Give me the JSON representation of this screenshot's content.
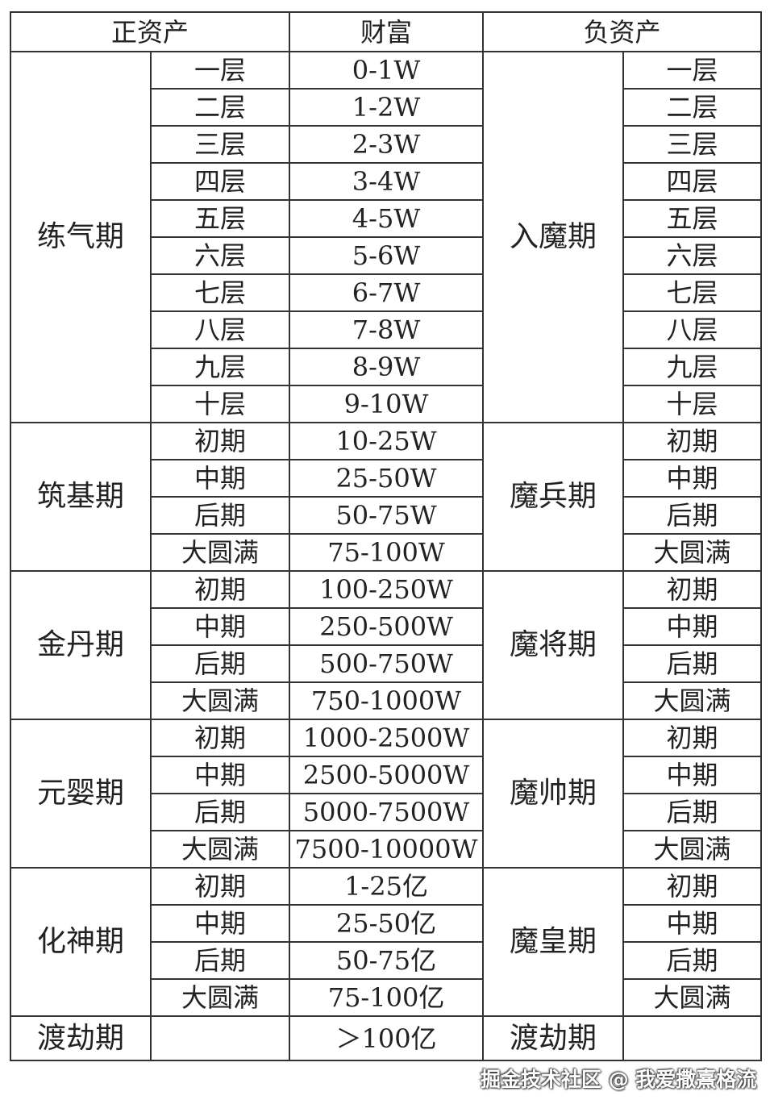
{
  "header": {
    "positive": "正资产",
    "wealth": "财富",
    "negative": "负资产"
  },
  "groups": [
    {
      "positive": "练气期",
      "negative": "入魔期",
      "rows": [
        {
          "stage": "一层",
          "wealth": "0-1W",
          "neg_stage": "一层"
        },
        {
          "stage": "二层",
          "wealth": "1-2W",
          "neg_stage": "二层"
        },
        {
          "stage": "三层",
          "wealth": "2-3W",
          "neg_stage": "三层"
        },
        {
          "stage": "四层",
          "wealth": "3-4W",
          "neg_stage": "四层"
        },
        {
          "stage": "五层",
          "wealth": "4-5W",
          "neg_stage": "五层"
        },
        {
          "stage": "六层",
          "wealth": "5-6W",
          "neg_stage": "六层"
        },
        {
          "stage": "七层",
          "wealth": "6-7W",
          "neg_stage": "七层"
        },
        {
          "stage": "八层",
          "wealth": "7-8W",
          "neg_stage": "八层"
        },
        {
          "stage": "九层",
          "wealth": "8-9W",
          "neg_stage": "九层"
        },
        {
          "stage": "十层",
          "wealth": "9-10W",
          "neg_stage": "十层"
        }
      ]
    },
    {
      "positive": "筑基期",
      "negative": "魔兵期",
      "rows": [
        {
          "stage": "初期",
          "wealth": "10-25W",
          "neg_stage": "初期"
        },
        {
          "stage": "中期",
          "wealth": "25-50W",
          "neg_stage": "中期"
        },
        {
          "stage": "后期",
          "wealth": "50-75W",
          "neg_stage": "后期"
        },
        {
          "stage": "大圆满",
          "wealth": "75-100W",
          "neg_stage": "大圆满"
        }
      ]
    },
    {
      "positive": "金丹期",
      "negative": "魔将期",
      "rows": [
        {
          "stage": "初期",
          "wealth": "100-250W",
          "neg_stage": "初期"
        },
        {
          "stage": "中期",
          "wealth": "250-500W",
          "neg_stage": "中期"
        },
        {
          "stage": "后期",
          "wealth": "500-750W",
          "neg_stage": "后期"
        },
        {
          "stage": "大圆满",
          "wealth": "750-1000W",
          "neg_stage": "大圆满"
        }
      ]
    },
    {
      "positive": "元婴期",
      "negative": "魔帅期",
      "rows": [
        {
          "stage": "初期",
          "wealth": "1000-2500W",
          "neg_stage": "初期"
        },
        {
          "stage": "中期",
          "wealth": "2500-5000W",
          "neg_stage": "中期"
        },
        {
          "stage": "后期",
          "wealth": "5000-7500W",
          "neg_stage": "后期"
        },
        {
          "stage": "大圆满",
          "wealth": "7500-10000W",
          "neg_stage": "大圆满"
        }
      ]
    },
    {
      "positive": "化神期",
      "negative": "魔皇期",
      "rows": [
        {
          "stage": "初期",
          "wealth": "1-25亿",
          "neg_stage": "初期"
        },
        {
          "stage": "中期",
          "wealth": "25-50亿",
          "neg_stage": "中期"
        },
        {
          "stage": "后期",
          "wealth": "50-75亿",
          "neg_stage": "后期"
        },
        {
          "stage": "大圆满",
          "wealth": "75-100亿",
          "neg_stage": "大圆满"
        }
      ]
    }
  ],
  "final_row": {
    "positive": "渡劫期",
    "stage": "",
    "wealth": "＞100亿",
    "negative": "渡劫期",
    "neg_stage": ""
  },
  "watermark": "掘金技术社区 @ 我爱撒熹格流"
}
